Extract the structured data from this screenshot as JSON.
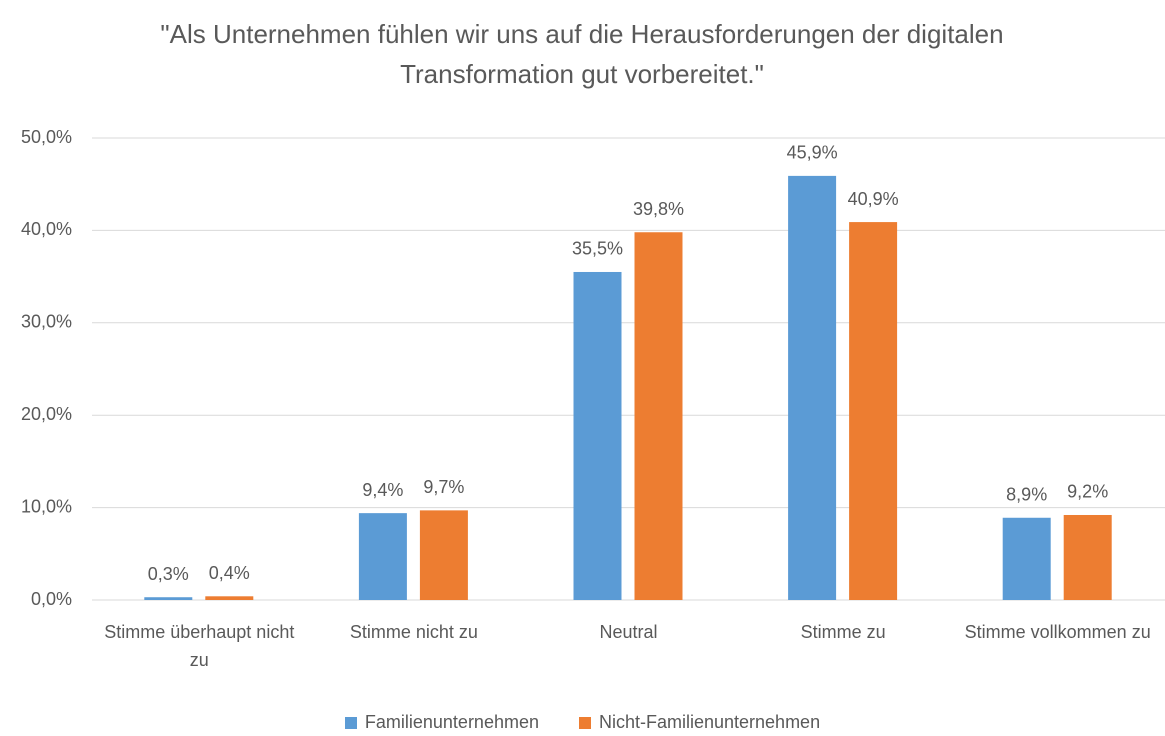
{
  "chart_data": {
    "type": "bar",
    "title": "\"Als Unternehmen fühlen wir uns auf die Herausforderungen der digitalen Transformation gut vorbereitet.\"",
    "categories": [
      "Stimme überhaupt nicht zu",
      "Stimme nicht zu",
      "Neutral",
      "Stimme zu",
      "Stimme vollkommen zu"
    ],
    "series": [
      {
        "name": "Familienunternehmen",
        "color": "#5b9bd5",
        "values": [
          0.3,
          9.4,
          35.5,
          45.9,
          8.9
        ],
        "value_labels": [
          "0,3%",
          "9,4%",
          "35,5%",
          "45,9%",
          "8,9%"
        ]
      },
      {
        "name": "Nicht-Familienunternehmen",
        "color": "#ed7d31",
        "values": [
          0.4,
          9.7,
          39.8,
          40.9,
          9.2
        ],
        "value_labels": [
          "0,4%",
          "9,7%",
          "39,8%",
          "40,9%",
          "9,2%"
        ]
      }
    ],
    "ylim": [
      0,
      50
    ],
    "yticks": [
      {
        "value": 0,
        "label": "0,0%"
      },
      {
        "value": 10,
        "label": "10,0%"
      },
      {
        "value": 20,
        "label": "20,0%"
      },
      {
        "value": 30,
        "label": "30,0%"
      },
      {
        "value": 40,
        "label": "40,0%"
      },
      {
        "value": 50,
        "label": "50,0%"
      }
    ],
    "grid": true,
    "legend": "bottom"
  }
}
